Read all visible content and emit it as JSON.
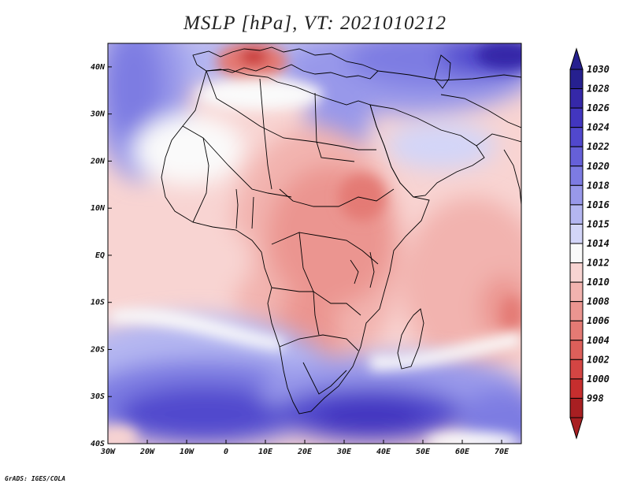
{
  "title": "MSLP [hPa], VT: 2021010212",
  "credit": "GrADS: IGES/COLA",
  "axes": {
    "x_ticks": [
      {
        "lon": -30,
        "label": "30W"
      },
      {
        "lon": -20,
        "label": "20W"
      },
      {
        "lon": -10,
        "label": "10W"
      },
      {
        "lon": 0,
        "label": "0"
      },
      {
        "lon": 10,
        "label": "10E"
      },
      {
        "lon": 20,
        "label": "20E"
      },
      {
        "lon": 30,
        "label": "30E"
      },
      {
        "lon": 40,
        "label": "40E"
      },
      {
        "lon": 50,
        "label": "50E"
      },
      {
        "lon": 60,
        "label": "60E"
      },
      {
        "lon": 70,
        "label": "70E"
      }
    ],
    "y_ticks": [
      {
        "lat": 40,
        "label": "40N"
      },
      {
        "lat": 30,
        "label": "30N"
      },
      {
        "lat": 20,
        "label": "20N"
      },
      {
        "lat": 10,
        "label": "10N"
      },
      {
        "lat": 0,
        "label": "EQ"
      },
      {
        "lat": -10,
        "label": "10S"
      },
      {
        "lat": -20,
        "label": "20S"
      },
      {
        "lat": -30,
        "label": "30S"
      },
      {
        "lat": -40,
        "label": "40S"
      }
    ],
    "lon_range": [
      -30,
      75
    ],
    "lat_range": [
      -40,
      45
    ]
  },
  "colorbar": {
    "levels": [
      {
        "value": "1030",
        "color": "#26208f"
      },
      {
        "value": "1028",
        "color": "#3528a8"
      },
      {
        "value": "1026",
        "color": "#4236bf"
      },
      {
        "value": "1024",
        "color": "#5148cd"
      },
      {
        "value": "1022",
        "color": "#6660d8"
      },
      {
        "value": "1020",
        "color": "#7d7be2"
      },
      {
        "value": "1018",
        "color": "#9898ea"
      },
      {
        "value": "1016",
        "color": "#b4b6f1"
      },
      {
        "value": "1015",
        "color": "#d3d5f8"
      },
      {
        "value": "1014",
        "color": "#fafafa"
      },
      {
        "value": "1012",
        "color": "#f8d4d2"
      },
      {
        "value": "1010",
        "color": "#f2b3af"
      },
      {
        "value": "1008",
        "color": "#eb9590"
      },
      {
        "value": "1006",
        "color": "#e47a74"
      },
      {
        "value": "1004",
        "color": "#dd5f5a"
      },
      {
        "value": "1002",
        "color": "#d44543"
      },
      {
        "value": "1000",
        "color": "#c62e2e"
      },
      {
        "value": "998",
        "color": "#a81f22"
      }
    ]
  }
}
